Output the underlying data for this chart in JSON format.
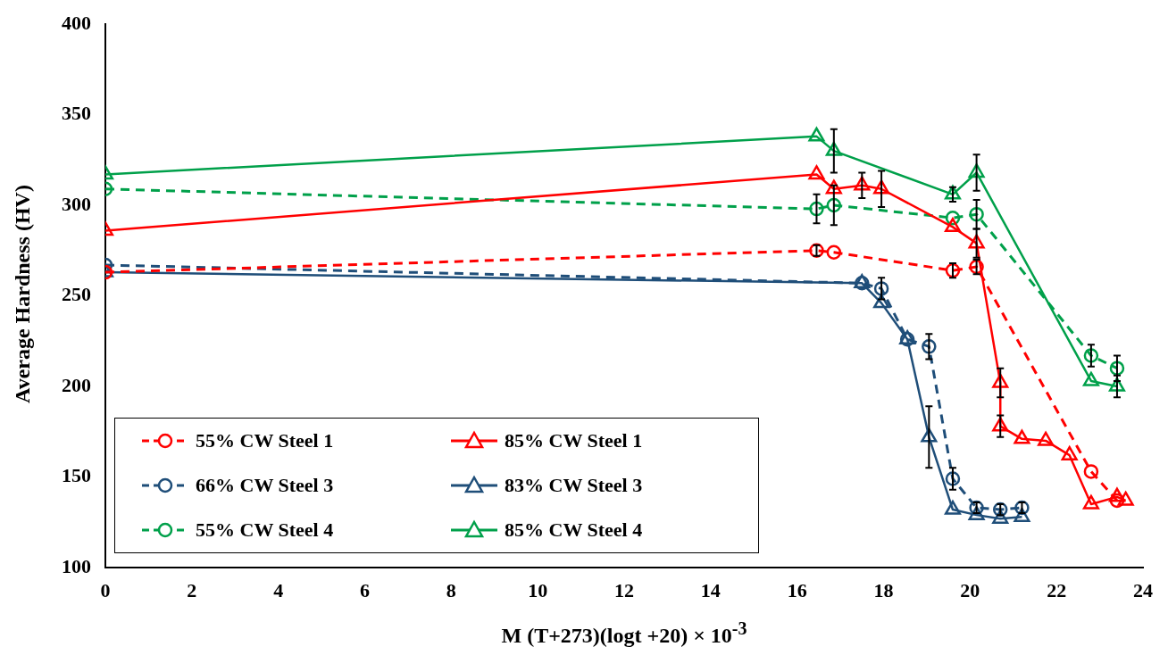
{
  "chart_data": {
    "type": "line",
    "xlabel": "M (T+273)(logt +20) × 10$^{-3}$",
    "ylabel": "Average Hardness (HV)",
    "xlim": [
      0,
      24
    ],
    "xticks": [
      0,
      2,
      4,
      6,
      8,
      10,
      12,
      14,
      16,
      18,
      20,
      22,
      24
    ],
    "ylim": [
      100,
      400
    ],
    "yticks": [
      100,
      150,
      200,
      250,
      300,
      350,
      400
    ],
    "grid": false,
    "legend": "bottom left",
    "series": [
      {
        "name": "55% CW Steel 1",
        "color": "#ff0000",
        "marker": "circle",
        "line_style": "dashed",
        "x": [
          0,
          16.45,
          16.85,
          19.6,
          20.15,
          22.8,
          23.4
        ],
        "values": [
          263,
          275,
          274,
          264,
          266,
          153,
          137
        ],
        "errors": [
          null,
          3,
          null,
          4,
          4,
          null,
          null
        ]
      },
      {
        "name": "85% CW Steel 1",
        "color": "#ff0000",
        "marker": "triangle",
        "line_style": "solid",
        "x": [
          0,
          16.45,
          16.85,
          17.5,
          17.95,
          19.6,
          20.15,
          20.7,
          20.7,
          21.2,
          21.75,
          22.3,
          22.8,
          23.4,
          23.6
        ],
        "values": [
          286,
          317,
          309,
          311,
          309,
          288,
          279,
          202,
          178,
          171,
          170,
          162,
          135,
          139,
          137
        ],
        "errors": [
          null,
          null,
          null,
          7,
          10,
          null,
          8,
          8,
          6,
          null,
          null,
          null,
          null,
          null,
          null
        ]
      },
      {
        "name": "66% CW Steel 3",
        "color": "#1f4e79",
        "marker": "circle",
        "line_style": "dashed",
        "x": [
          0,
          17.5,
          17.95,
          18.55,
          19.05,
          19.6,
          20.15,
          20.7,
          21.2
        ],
        "values": [
          267,
          257,
          254,
          226,
          222,
          149,
          133,
          132,
          133
        ],
        "errors": [
          null,
          null,
          6,
          null,
          7,
          6,
          3,
          3,
          3
        ]
      },
      {
        "name": "83% CW Steel 3",
        "color": "#1f4e79",
        "marker": "triangle",
        "line_style": "solid",
        "x": [
          0,
          17.5,
          17.95,
          18.55,
          19.05,
          19.6,
          20.15,
          20.7,
          21.2
        ],
        "values": [
          263,
          257,
          246,
          226,
          172,
          132,
          129,
          127,
          128
        ],
        "errors": [
          null,
          null,
          null,
          null,
          17,
          null,
          null,
          null,
          null
        ]
      },
      {
        "name": "55% CW Steel 4",
        "color": "#00a04a",
        "marker": "circle",
        "line_style": "dashed",
        "x": [
          0,
          16.45,
          16.85,
          19.6,
          20.15,
          22.8,
          23.4
        ],
        "values": [
          309,
          298,
          300,
          293,
          295,
          217,
          210
        ],
        "errors": [
          null,
          8,
          11,
          null,
          8,
          6,
          7
        ]
      },
      {
        "name": "85% CW Steel 4",
        "color": "#00a04a",
        "marker": "triangle",
        "line_style": "solid",
        "x": [
          0,
          16.45,
          16.85,
          19.6,
          20.15,
          22.8,
          23.4
        ],
        "values": [
          317,
          338,
          330,
          306,
          318,
          203,
          200
        ],
        "errors": [
          null,
          null,
          12,
          4,
          10,
          null,
          6
        ]
      }
    ]
  }
}
